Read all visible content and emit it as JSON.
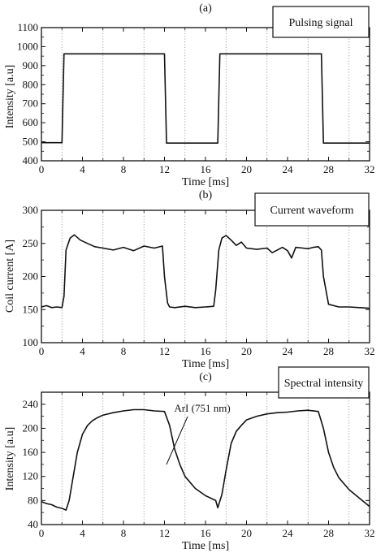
{
  "chart_data": [
    {
      "panel_label": "(a)",
      "type": "line",
      "title": "Pulsing signal",
      "xlabel": "Time [ms]",
      "ylabel": "Intensity [a.u]",
      "xlim": [
        0,
        32
      ],
      "ylim": [
        400,
        1100
      ],
      "xticks": [
        0,
        4,
        8,
        12,
        16,
        20,
        24,
        28,
        32
      ],
      "yticks": [
        400,
        500,
        600,
        700,
        800,
        900,
        1000,
        1100
      ],
      "vgrid": [
        2,
        6,
        10,
        14,
        18,
        22,
        26,
        30
      ],
      "series": [
        {
          "x": [
            0,
            2,
            2.2,
            12,
            12.2,
            17.2,
            17.4,
            27.3,
            27.5,
            32
          ],
          "y": [
            495,
            495,
            962,
            962,
            493,
            493,
            962,
            962,
            493,
            493
          ]
        }
      ]
    },
    {
      "panel_label": "(b)",
      "type": "line",
      "title": "Current waveform",
      "xlabel": "Time [ms]",
      "ylabel": "Coil current [A]",
      "xlim": [
        0,
        32
      ],
      "ylim": [
        100,
        300
      ],
      "xticks": [
        0,
        4,
        8,
        12,
        16,
        20,
        24,
        28,
        32
      ],
      "yticks": [
        100,
        150,
        200,
        250,
        300
      ],
      "vgrid": [
        2,
        6,
        10,
        14,
        18,
        22,
        26,
        30
      ],
      "series": [
        {
          "x": [
            0,
            0.5,
            1,
            1.5,
            2,
            2.2,
            2.4,
            2.8,
            3.2,
            3.8,
            4.5,
            5.2,
            6,
            7,
            8,
            9,
            10,
            11,
            11.8,
            12,
            12.3,
            12.5,
            13,
            14,
            15,
            16,
            16.8,
            17,
            17.3,
            17.6,
            18,
            18.5,
            19,
            19.5,
            20,
            21,
            22,
            22.5,
            23,
            23.5,
            24,
            24.4,
            24.8,
            25.5,
            26,
            26.5,
            27,
            27.3,
            27.5,
            28,
            29,
            30,
            31,
            32
          ],
          "y": [
            154,
            156,
            153,
            154,
            153,
            170,
            240,
            258,
            263,
            255,
            250,
            245,
            243,
            240,
            244,
            239,
            246,
            243,
            246,
            200,
            160,
            154,
            153,
            155,
            153,
            154,
            155,
            180,
            240,
            258,
            262,
            255,
            247,
            252,
            243,
            241,
            243,
            236,
            240,
            244,
            239,
            228,
            244,
            243,
            242,
            244,
            245,
            240,
            200,
            158,
            154,
            154,
            153,
            152
          ]
        }
      ]
    },
    {
      "panel_label": "(c)",
      "type": "line",
      "title": "Spectral intensity",
      "annotation": "ArI (751 nm)",
      "xlabel": "Time [ms]",
      "ylabel": "Intensity [a.u]",
      "xlim": [
        0,
        32
      ],
      "ylim": [
        40,
        260
      ],
      "xticks": [
        0,
        4,
        8,
        12,
        16,
        20,
        24,
        28,
        32
      ],
      "yticks": [
        40,
        80,
        120,
        160,
        200,
        240
      ],
      "vgrid": [
        2,
        6,
        10,
        14,
        18,
        22,
        26,
        30
      ],
      "series": [
        {
          "x": [
            0,
            0.5,
            1,
            1.5,
            2,
            2.4,
            2.7,
            3,
            3.5,
            4,
            4.5,
            5,
            5.5,
            6,
            7,
            8,
            9,
            10,
            11,
            12,
            12.5,
            13,
            13.5,
            14,
            15,
            16,
            16.5,
            17,
            17.2,
            17.6,
            18,
            18.5,
            19,
            19.5,
            20,
            21,
            22,
            23,
            24,
            25,
            26,
            27,
            27.5,
            28,
            28.5,
            29,
            30,
            31,
            32
          ],
          "y": [
            78,
            75,
            73,
            69,
            67,
            64,
            80,
            110,
            160,
            190,
            205,
            213,
            218,
            222,
            226,
            229,
            231,
            231,
            229,
            228,
            205,
            165,
            140,
            120,
            100,
            88,
            84,
            80,
            68,
            90,
            130,
            175,
            195,
            205,
            214,
            220,
            224,
            226,
            227,
            229,
            230,
            228,
            200,
            160,
            135,
            118,
            98,
            84,
            70
          ]
        }
      ]
    }
  ]
}
